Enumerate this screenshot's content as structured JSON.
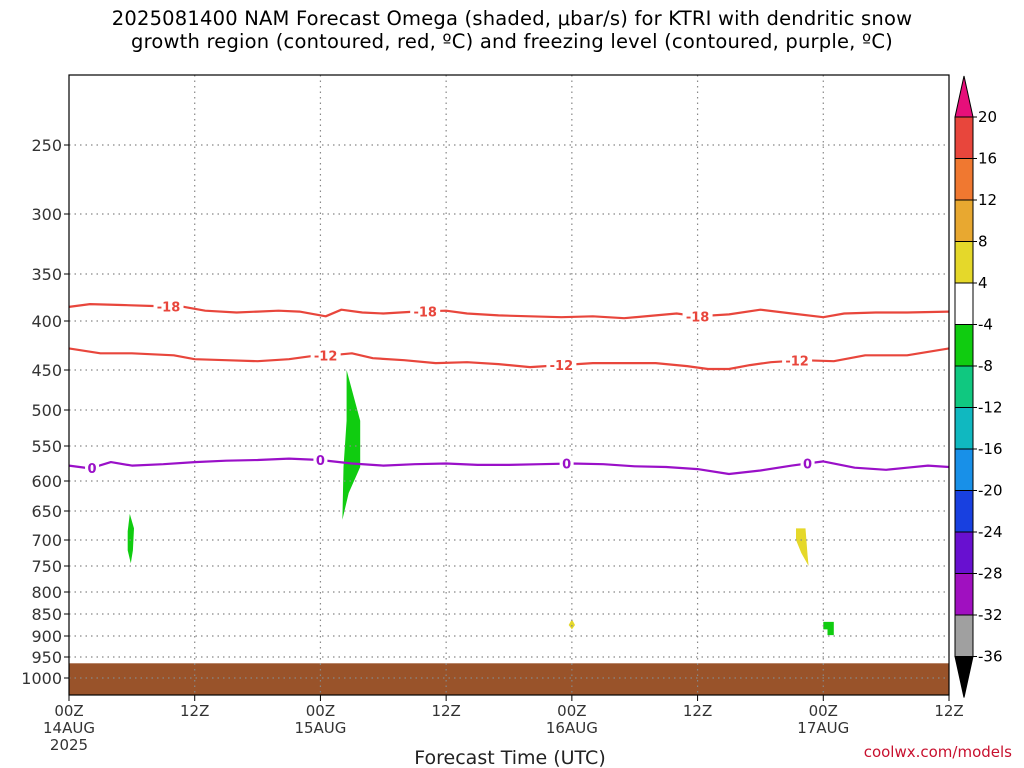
{
  "title_line1": "2025081400 NAM Forecast Omega (shaded, μbar/s) for KTRI with dendritic snow",
  "title_line2": "growth region (contoured, red, ºC) and freezing level (contoured, purple, ºC)",
  "credit": "coolwx.com/models",
  "colors": {
    "ground": "#99532a",
    "grid": "#888888",
    "dgz": "#e8463c",
    "freezing": "#9a10c8",
    "green": "#10cc10",
    "yellow": "#e5d82a"
  },
  "chart_data": {
    "type": "heatmap",
    "title": "2025081400 NAM Forecast Omega (shaded, μbar/s) for KTRI with dendritic snow growth region (contoured, red, ºC) and freezing level (contoured, purple, ºC)",
    "xlabel": "Forecast Time (UTC)",
    "ylabel": "",
    "x_range_hours": [
      0,
      84
    ],
    "x_ticks": [
      {
        "hour": 0,
        "line1": "00Z",
        "line2": "14AUG",
        "line3": "2025"
      },
      {
        "hour": 12,
        "line1": "12Z",
        "line2": "",
        "line3": ""
      },
      {
        "hour": 24,
        "line1": "00Z",
        "line2": "15AUG",
        "line3": ""
      },
      {
        "hour": 36,
        "line1": "12Z",
        "line2": "",
        "line3": ""
      },
      {
        "hour": 48,
        "line1": "00Z",
        "line2": "16AUG",
        "line3": ""
      },
      {
        "hour": 60,
        "line1": "12Z",
        "line2": "",
        "line3": ""
      },
      {
        "hour": 72,
        "line1": "00Z",
        "line2": "17AUG",
        "line3": ""
      },
      {
        "hour": 84,
        "line1": "12Z",
        "line2": "",
        "line3": ""
      }
    ],
    "y_ticks": [
      "250",
      "300",
      "350",
      "400",
      "450",
      "500",
      "550",
      "600",
      "650",
      "700",
      "750",
      "800",
      "850",
      "900",
      "950",
      "1000"
    ],
    "y_tick_values": [
      250,
      300,
      350,
      400,
      450,
      500,
      550,
      600,
      650,
      700,
      750,
      800,
      850,
      900,
      950,
      1000
    ],
    "y_range_hpa": [
      200,
      1025
    ],
    "surface_pressure_hpa": 965,
    "contours": [
      {
        "label": "-18",
        "color": "dgz",
        "hours": [
          0,
          2,
          5,
          8,
          11,
          13,
          16,
          18,
          20,
          22,
          24.5,
          26,
          28,
          30,
          33,
          36,
          38,
          41,
          44,
          47,
          50,
          53,
          56,
          58,
          60,
          63,
          66,
          69,
          72,
          74,
          77,
          80,
          84
        ],
        "p": [
          385,
          382,
          383,
          384,
          385,
          389,
          391,
          390,
          389,
          390,
          395,
          388,
          391,
          392,
          390,
          389,
          392,
          394,
          395,
          396,
          395,
          397,
          394,
          392,
          395,
          393,
          388,
          392,
          396,
          392,
          391,
          391,
          390
        ],
        "labels_at": [
          9.5,
          34,
          60
        ]
      },
      {
        "label": "-12",
        "color": "dgz",
        "hours": [
          0,
          3,
          6,
          8,
          10,
          12,
          15,
          18,
          21,
          23,
          25,
          27,
          29,
          32,
          35,
          38,
          41,
          44,
          47,
          50,
          53,
          56,
          59,
          61,
          63,
          65,
          67,
          70,
          73,
          76,
          80,
          84
        ],
        "p": [
          428,
          433,
          433,
          434,
          435,
          439,
          440,
          441,
          439,
          436,
          435,
          433,
          438,
          440,
          443,
          442,
          444,
          447,
          445,
          443,
          443,
          443,
          446,
          449,
          449,
          445,
          442,
          440,
          441,
          435,
          435,
          428
        ],
        "labels_at": [
          24.5,
          47,
          69.5
        ]
      },
      {
        "label": "0",
        "color": "freezing",
        "hours": [
          0,
          2,
          4,
          6,
          9,
          12,
          15,
          18,
          21,
          24,
          27,
          30,
          33,
          36,
          39,
          42,
          45,
          48,
          51,
          54,
          57,
          60,
          63,
          66,
          69,
          72,
          75,
          78,
          80,
          82,
          84
        ],
        "p": [
          578,
          582,
          573,
          578,
          576,
          573,
          571,
          570,
          568,
          570,
          575,
          578,
          576,
          575,
          577,
          577,
          576,
          575,
          576,
          579,
          580,
          583,
          590,
          585,
          578,
          572,
          581,
          584,
          581,
          578,
          580
        ],
        "labels_at": [
          2.2,
          24,
          47.5,
          70.5
        ]
      }
    ],
    "shaded_regions": [
      {
        "color": "green",
        "outline": [
          [
            5.8,
            655
          ],
          [
            6.2,
            680
          ],
          [
            6.1,
            720
          ],
          [
            5.9,
            745
          ],
          [
            5.6,
            720
          ],
          [
            5.6,
            685
          ]
        ]
      },
      {
        "color": "green",
        "outline": [
          [
            26.5,
            450
          ],
          [
            27.8,
            515
          ],
          [
            27.8,
            580
          ],
          [
            26.7,
            620
          ],
          [
            26.1,
            665
          ],
          [
            26.2,
            580
          ],
          [
            26.5,
            515
          ]
        ]
      },
      {
        "color": "yellow",
        "outline": [
          [
            48.0,
            862
          ],
          [
            48.3,
            875
          ],
          [
            48.0,
            885
          ],
          [
            47.7,
            875
          ]
        ]
      },
      {
        "color": "yellow",
        "outline": [
          [
            69.4,
            680
          ],
          [
            70.3,
            680
          ],
          [
            70.5,
            730
          ],
          [
            70.6,
            750
          ],
          [
            69.9,
            725
          ],
          [
            69.4,
            700
          ]
        ]
      },
      {
        "color": "green",
        "outline": [
          [
            72.0,
            868
          ],
          [
            73.0,
            868
          ],
          [
            73.0,
            898
          ],
          [
            72.4,
            898
          ],
          [
            72.4,
            885
          ],
          [
            72.0,
            885
          ]
        ]
      }
    ],
    "colorbar": {
      "levels": [
        "20",
        "16",
        "12",
        "8",
        "4",
        "-4",
        "-8",
        "-12",
        "-16",
        "-20",
        "-24",
        "-28",
        "-32",
        "-36"
      ],
      "colors": [
        "#e60f7a",
        "#e8463c",
        "#f07830",
        "#e8a830",
        "#e5d82a",
        "#ffffff",
        "#10cc10",
        "#10c880",
        "#10b8c0",
        "#1890e8",
        "#1840e0",
        "#6810d0",
        "#a010c0",
        "#a0a0a0",
        "#000000"
      ]
    }
  }
}
